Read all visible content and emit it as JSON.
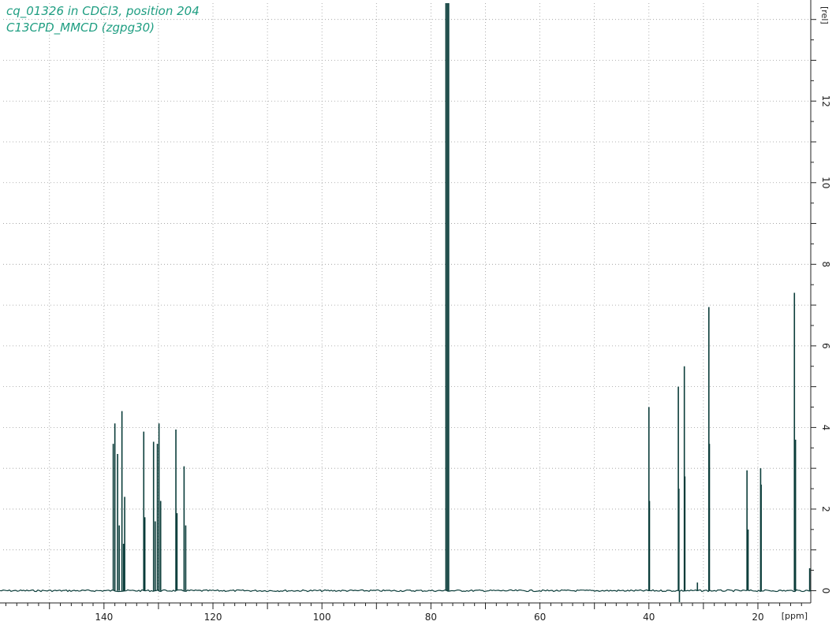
{
  "header": {
    "line1": "cq_01326 in CDCl3, position 204",
    "line2": "C13CPD_MMCD (zgpg30)"
  },
  "colors": {
    "spectrum": "#0b3d3a",
    "title": "#1f9e82",
    "grid": "#9a9a9a",
    "axis": "#222222"
  },
  "chart_data": {
    "type": "line",
    "x_axis": {
      "label": "[ppm]",
      "range": [
        158.5,
        10.3
      ],
      "reversed": true,
      "ticks": [
        140,
        120,
        100,
        80,
        60,
        40,
        20
      ],
      "minor_step": 2
    },
    "y_axis": {
      "label": "[rel]",
      "range": [
        -0.3,
        14.4
      ],
      "ticks": [
        0,
        2,
        4,
        6,
        8,
        10,
        12
      ],
      "position": "right"
    },
    "grid": true,
    "peaks": [
      {
        "ppm": 138.3,
        "height": 3.6
      },
      {
        "ppm": 138.0,
        "height": 4.1
      },
      {
        "ppm": 137.5,
        "height": 3.35
      },
      {
        "ppm": 137.2,
        "height": 1.6
      },
      {
        "ppm": 136.7,
        "height": 4.4
      },
      {
        "ppm": 136.4,
        "height": 1.15
      },
      {
        "ppm": 136.2,
        "height": 2.3
      },
      {
        "ppm": 132.7,
        "height": 3.9
      },
      {
        "ppm": 132.5,
        "height": 1.8
      },
      {
        "ppm": 130.9,
        "height": 3.65
      },
      {
        "ppm": 130.6,
        "height": 1.7
      },
      {
        "ppm": 130.2,
        "height": 3.6
      },
      {
        "ppm": 129.9,
        "height": 4.1
      },
      {
        "ppm": 129.6,
        "height": 2.2
      },
      {
        "ppm": 126.8,
        "height": 3.95
      },
      {
        "ppm": 126.6,
        "height": 1.9
      },
      {
        "ppm": 125.3,
        "height": 3.05
      },
      {
        "ppm": 125.0,
        "height": 1.6
      },
      {
        "ppm": 77.25,
        "height": 14.4
      },
      {
        "ppm": 77.0,
        "height": 14.4
      },
      {
        "ppm": 76.75,
        "height": 14.4
      },
      {
        "ppm": 40.0,
        "height": 4.5
      },
      {
        "ppm": 39.9,
        "height": 2.2
      },
      {
        "ppm": 34.6,
        "height": 5.0
      },
      {
        "ppm": 34.5,
        "height": 2.5
      },
      {
        "ppm": 34.4,
        "height": -0.28
      },
      {
        "ppm": 33.5,
        "height": 5.5
      },
      {
        "ppm": 33.4,
        "height": 2.8
      },
      {
        "ppm": 31.1,
        "height": 0.2
      },
      {
        "ppm": 29.0,
        "height": 6.95
      },
      {
        "ppm": 28.9,
        "height": 3.6
      },
      {
        "ppm": 22.0,
        "height": 2.95
      },
      {
        "ppm": 21.8,
        "height": 1.5
      },
      {
        "ppm": 19.5,
        "height": 3.0
      },
      {
        "ppm": 19.4,
        "height": 2.6
      },
      {
        "ppm": 13.3,
        "height": 7.3
      },
      {
        "ppm": 13.1,
        "height": 3.7
      },
      {
        "ppm": 10.5,
        "height": 0.55
      }
    ]
  }
}
